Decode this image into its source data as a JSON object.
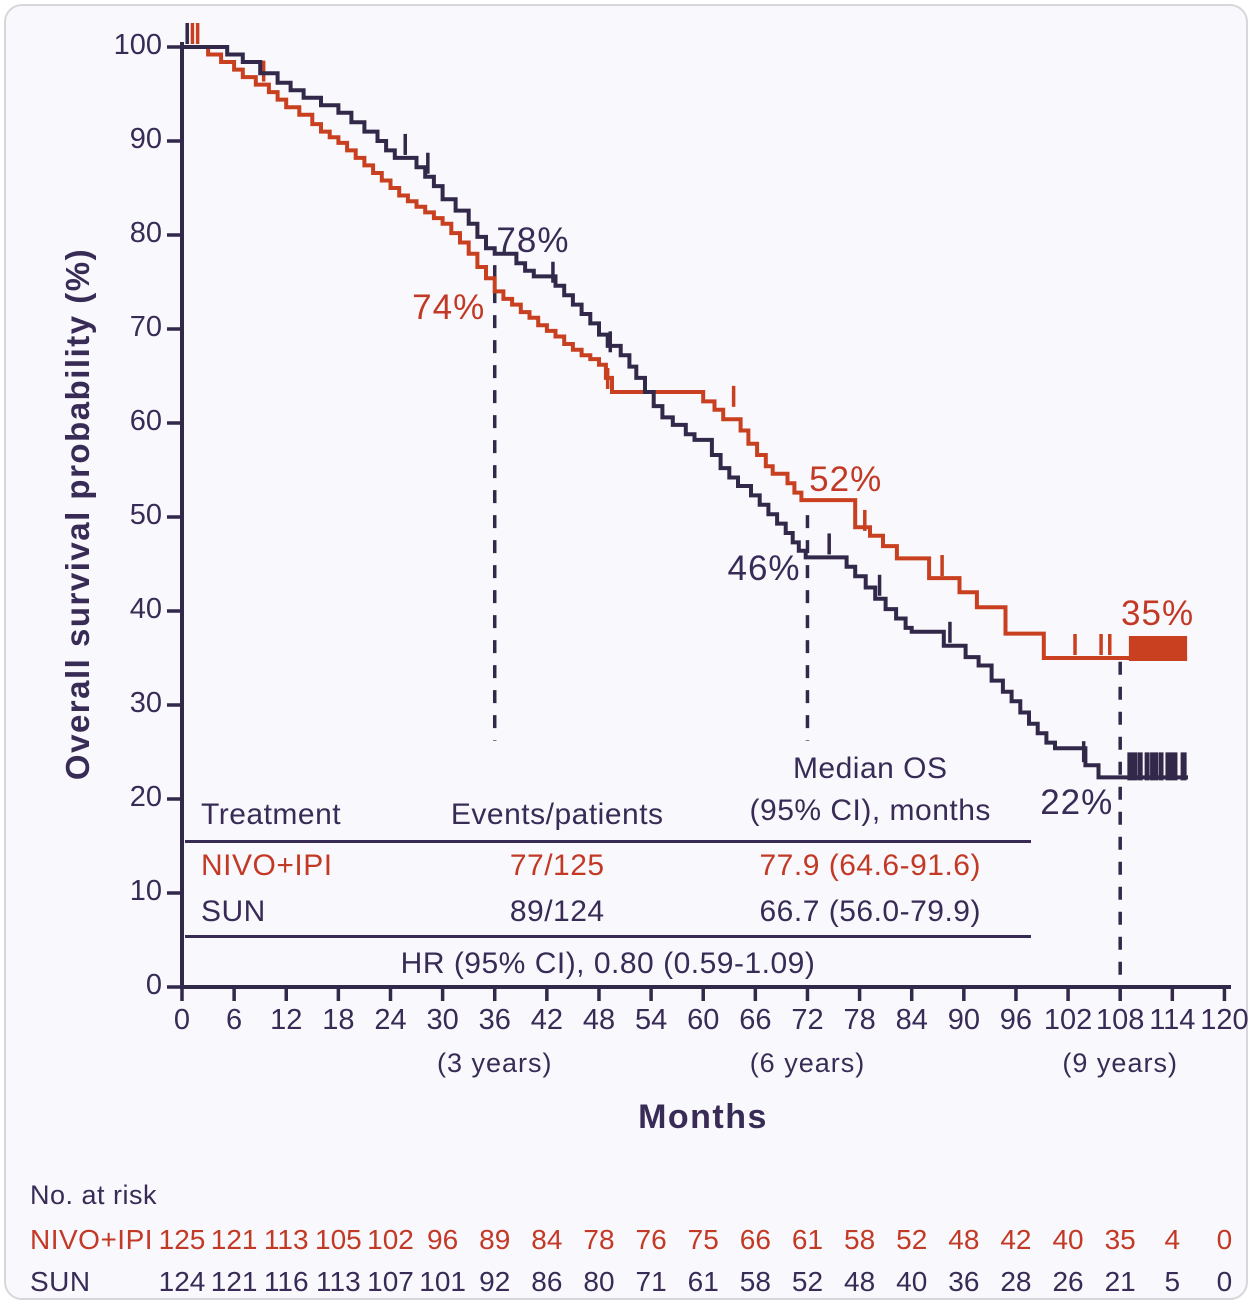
{
  "colors": {
    "navy": "#382c57",
    "red": "#c23a26",
    "navy_curve": "#32284a",
    "red_curve": "#c8401f",
    "background": "#f9f8fc",
    "frame_border": "#d8d6db"
  },
  "chart_data": {
    "type": "line",
    "subtype": "kaplan-meier-step",
    "title": "",
    "xlabel": "Months",
    "ylabel": "Overall survival probability (%)",
    "xlim": [
      0,
      120
    ],
    "ylim": [
      0,
      100
    ],
    "grid": false,
    "x_ticks": [
      0,
      6,
      12,
      18,
      24,
      30,
      36,
      42,
      48,
      54,
      60,
      66,
      72,
      78,
      84,
      90,
      96,
      102,
      108,
      114,
      120
    ],
    "y_ticks": [
      0,
      10,
      20,
      30,
      40,
      50,
      60,
      70,
      80,
      90,
      100
    ],
    "year_notes": [
      {
        "month": 36,
        "label": "(3 years)"
      },
      {
        "month": 72,
        "label": "(6 years)"
      },
      {
        "month": 108,
        "label": "(9 years)"
      }
    ],
    "dashed_lines": [
      {
        "month": 36,
        "from_pct": 76.8,
        "to_pct": 26.2
      },
      {
        "month": 72,
        "from_pct": 50.2,
        "to_pct": 26.2
      },
      {
        "month": 108,
        "from_pct": 34.6,
        "to_pct": 0.2
      }
    ],
    "annotations": [
      {
        "text": "78%",
        "m": 40.4,
        "p": 78.9,
        "color": "navy"
      },
      {
        "text": "74%",
        "m": 30.7,
        "p": 71.8,
        "color": "red"
      },
      {
        "text": "52%",
        "m": 76.4,
        "p": 53.5,
        "color": "red"
      },
      {
        "text": "46%",
        "m": 67.0,
        "p": 44.0,
        "color": "navy"
      },
      {
        "text": "35%",
        "m": 112.3,
        "p": 39.3,
        "color": "red"
      },
      {
        "text": "22%",
        "m": 103.0,
        "p": 19.2,
        "color": "navy"
      }
    ],
    "series": [
      {
        "id": "nivo-ipi",
        "name": "NIVO+IPI",
        "color_key": "red_curve",
        "milestones": {
          "36": "74%",
          "72": "52%",
          "108": "35%"
        },
        "end_month": 115.7,
        "steps": [
          [
            3,
            99.2
          ],
          [
            4.5,
            98.4
          ],
          [
            6,
            97.6
          ],
          [
            7,
            96.8
          ],
          [
            8.5,
            96
          ],
          [
            10,
            95.2
          ],
          [
            11,
            94.4
          ],
          [
            12,
            93.6
          ],
          [
            13.5,
            92.8
          ],
          [
            15,
            91.8
          ],
          [
            16,
            91
          ],
          [
            17,
            90.4
          ],
          [
            18,
            89.8
          ],
          [
            19,
            89
          ],
          [
            20,
            88.2
          ],
          [
            21,
            87.4
          ],
          [
            22,
            86.6
          ],
          [
            23,
            85.8
          ],
          [
            24,
            85
          ],
          [
            25,
            84.2
          ],
          [
            26,
            83.6
          ],
          [
            27,
            83
          ],
          [
            28,
            82.4
          ],
          [
            29,
            81.8
          ],
          [
            30,
            81.2
          ],
          [
            31,
            80.2
          ],
          [
            32,
            79.2
          ],
          [
            33,
            78
          ],
          [
            34,
            76.6
          ],
          [
            35,
            75.4
          ],
          [
            36,
            74
          ],
          [
            37,
            73.2
          ],
          [
            38,
            72.6
          ],
          [
            39,
            71.8
          ],
          [
            40,
            71.2
          ],
          [
            41,
            70.4
          ],
          [
            42,
            69.8
          ],
          [
            43,
            69.2
          ],
          [
            44,
            68.4
          ],
          [
            45,
            67.8
          ],
          [
            46,
            67.2
          ],
          [
            47,
            66.8
          ],
          [
            48,
            66.2
          ],
          [
            48.8,
            64.8
          ],
          [
            49.5,
            63.3
          ],
          [
            60,
            62.3
          ],
          [
            61.3,
            61.4
          ],
          [
            62.3,
            60.4
          ],
          [
            64.3,
            59.2
          ],
          [
            65.2,
            57.8
          ],
          [
            66.2,
            56.6
          ],
          [
            67.2,
            55.4
          ],
          [
            68,
            54.6
          ],
          [
            69.7,
            53.6
          ],
          [
            70.5,
            52.6
          ],
          [
            71.3,
            51.8
          ],
          [
            77.5,
            48.9
          ],
          [
            79.2,
            48
          ],
          [
            80.7,
            46.9
          ],
          [
            82.3,
            45.6
          ],
          [
            86,
            43.5
          ],
          [
            89.5,
            42
          ],
          [
            91.5,
            40.4
          ],
          [
            94.8,
            37.6
          ],
          [
            99.2,
            35
          ]
        ],
        "censors": [
          [
            1.2,
            100
          ],
          [
            1.8,
            100
          ],
          [
            9.4,
            96
          ],
          [
            49,
            63.3
          ],
          [
            63.5,
            61.4
          ],
          [
            78.6,
            48.2
          ],
          [
            87.5,
            43.4
          ],
          [
            102.8,
            35
          ],
          [
            105.8,
            35
          ],
          [
            106.8,
            35
          ]
        ],
        "censor_block": {
          "from": 109,
          "to": 115.7,
          "value": 35
        }
      },
      {
        "id": "sun",
        "name": "SUN",
        "color_key": "navy_curve",
        "milestones": {
          "36": "78%",
          "72": "46%",
          "108": "22%"
        },
        "end_month": 115.8,
        "steps": [
          [
            5.2,
            99.2
          ],
          [
            7,
            98.4
          ],
          [
            9,
            97.2
          ],
          [
            11,
            96.2
          ],
          [
            12.5,
            95.4
          ],
          [
            14,
            94.6
          ],
          [
            16,
            93.8
          ],
          [
            18,
            93
          ],
          [
            19.5,
            92
          ],
          [
            21,
            91
          ],
          [
            22.5,
            90
          ],
          [
            23.5,
            89
          ],
          [
            24.5,
            88.2
          ],
          [
            27,
            87.2
          ],
          [
            28,
            86.2
          ],
          [
            29,
            85.2
          ],
          [
            30,
            83.8
          ],
          [
            31.5,
            82.6
          ],
          [
            33,
            81.2
          ],
          [
            34,
            79.8
          ],
          [
            35,
            78.6
          ],
          [
            36,
            78
          ],
          [
            38.5,
            77
          ],
          [
            39.5,
            76.2
          ],
          [
            40.5,
            75.6
          ],
          [
            43,
            74.6
          ],
          [
            44,
            73.6
          ],
          [
            45,
            72.6
          ],
          [
            46,
            71.6
          ],
          [
            47,
            70.6
          ],
          [
            48,
            69.4
          ],
          [
            49,
            68.2
          ],
          [
            50.5,
            67.2
          ],
          [
            51.5,
            66
          ],
          [
            52.3,
            64.8
          ],
          [
            53.3,
            63.3
          ],
          [
            54.3,
            61.8
          ],
          [
            55.3,
            60.6
          ],
          [
            56.5,
            59.8
          ],
          [
            58,
            58.8
          ],
          [
            59,
            58.2
          ],
          [
            61,
            56.6
          ],
          [
            62,
            55.2
          ],
          [
            63,
            54.2
          ],
          [
            64,
            53.3
          ],
          [
            65.5,
            52.3
          ],
          [
            66.5,
            51.3
          ],
          [
            67.5,
            50.3
          ],
          [
            68.5,
            49.3
          ],
          [
            69.5,
            48.3
          ],
          [
            70.3,
            47.3
          ],
          [
            71,
            46.4
          ],
          [
            71.8,
            45.7
          ],
          [
            76.5,
            44.7
          ],
          [
            77.5,
            43.7
          ],
          [
            78.7,
            42.5
          ],
          [
            79.8,
            41.3
          ],
          [
            81,
            40.2
          ],
          [
            82.2,
            39.2
          ],
          [
            83.3,
            38.2
          ],
          [
            84,
            37.8
          ],
          [
            87.7,
            36.3
          ],
          [
            90.2,
            35.1
          ],
          [
            91.7,
            34.2
          ],
          [
            93.2,
            32.6
          ],
          [
            94.5,
            31.4
          ],
          [
            95.5,
            30.4
          ],
          [
            96.5,
            29.2
          ],
          [
            97.5,
            28
          ],
          [
            98.5,
            27
          ],
          [
            99.5,
            26
          ],
          [
            100.5,
            25.4
          ],
          [
            104,
            23.6
          ],
          [
            105.5,
            22.3
          ]
        ],
        "censors": [
          [
            0.6,
            100
          ],
          [
            25.7,
            88.2
          ],
          [
            28.3,
            86.2
          ],
          [
            42.7,
            74.6
          ],
          [
            49.3,
            67.2
          ],
          [
            74.5,
            45.7
          ],
          [
            80.3,
            41.3
          ],
          [
            88.4,
            36.3
          ],
          [
            103.8,
            23.6
          ]
        ],
        "censor_cluster": {
          "months": [
            109.4,
            110.3,
            111.1,
            111.9,
            112.7,
            113.9,
            115.3
          ],
          "widths": [
            10,
            5,
            5,
            8,
            5,
            12,
            6
          ],
          "value": 22.3
        }
      }
    ]
  },
  "stats_table": {
    "headers": {
      "treatment": "Treatment",
      "events": "Events/patients",
      "median_line1": "Median OS",
      "median_line2": "(95% CI), months"
    },
    "rows": [
      {
        "treatment": "NIVO+IPI",
        "events": "77/125",
        "median": "77.9 (64.6-91.6)",
        "color": "red"
      },
      {
        "treatment": "SUN",
        "events": "89/124",
        "median": "66.7 (56.0-79.9)",
        "color": "navy"
      }
    ],
    "footer": "HR (95% CI), 0.80 (0.59-1.09)"
  },
  "risk_table": {
    "title": "No. at risk",
    "months": [
      0,
      6,
      12,
      18,
      24,
      30,
      36,
      42,
      48,
      54,
      60,
      66,
      72,
      78,
      84,
      90,
      96,
      102,
      108,
      114,
      120
    ],
    "rows": [
      {
        "label": "NIVO+IPI",
        "color": "red",
        "values": [
          125,
          121,
          113,
          105,
          102,
          96,
          89,
          84,
          78,
          76,
          75,
          66,
          61,
          58,
          52,
          48,
          42,
          40,
          35,
          4,
          0
        ]
      },
      {
        "label": "SUN",
        "color": "navy",
        "values": [
          124,
          121,
          116,
          113,
          107,
          101,
          92,
          86,
          80,
          71,
          61,
          58,
          52,
          48,
          40,
          36,
          28,
          26,
          21,
          5,
          0
        ]
      }
    ]
  }
}
